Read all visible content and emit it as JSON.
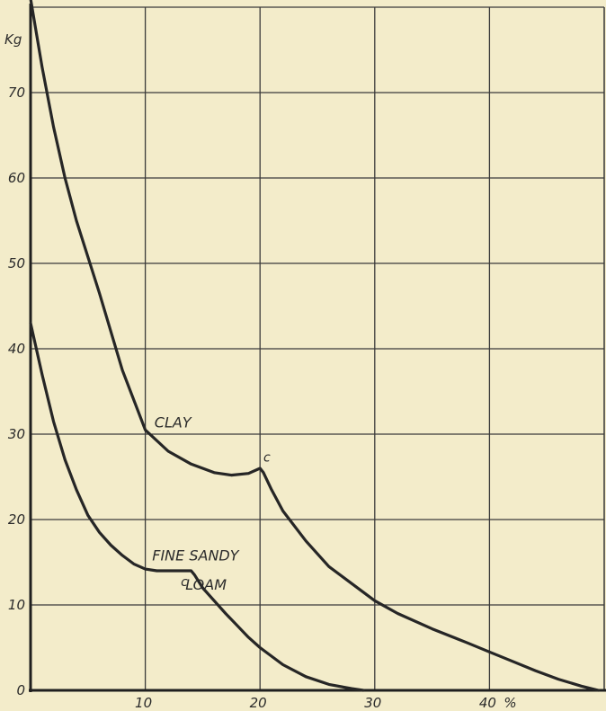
{
  "chart_data": {
    "type": "line",
    "title": "",
    "xlabel": "",
    "ylabel": "",
    "y_unit_label": "Kg",
    "x_unit_label": "%",
    "xlim": [
      0,
      50
    ],
    "ylim": [
      0,
      80
    ],
    "grid": true,
    "x_ticks": [
      {
        "value": 10,
        "label": "10"
      },
      {
        "value": 20,
        "label": "20"
      },
      {
        "value": 30,
        "label": "30"
      },
      {
        "value": 40,
        "label": "40"
      }
    ],
    "y_ticks": [
      {
        "value": 0,
        "label": "0"
      },
      {
        "value": 10,
        "label": "10"
      },
      {
        "value": 20,
        "label": "20"
      },
      {
        "value": 30,
        "label": "30"
      },
      {
        "value": 40,
        "label": "40"
      },
      {
        "value": 50,
        "label": "50"
      },
      {
        "value": 60,
        "label": "60"
      },
      {
        "value": 70,
        "label": "70"
      }
    ],
    "series": [
      {
        "name": "CLAY",
        "x": [
          0,
          1,
          2,
          3,
          4,
          6,
          8,
          10,
          12,
          14,
          16,
          17.5,
          19,
          20,
          20.3,
          21,
          22,
          24,
          26,
          28,
          30,
          32,
          35,
          38,
          40,
          42,
          44,
          46,
          48,
          49.5
        ],
        "y": [
          81,
          73,
          66,
          60,
          55,
          46.5,
          37.5,
          30.5,
          28,
          26.5,
          25.5,
          25.2,
          25.4,
          26,
          25.5,
          23.5,
          21,
          17.5,
          14.5,
          12.5,
          10.5,
          9,
          7.2,
          5.6,
          4.5,
          3.4,
          2.3,
          1.3,
          0.5,
          0
        ]
      },
      {
        "name": "FINE SANDY LOAM",
        "x": [
          0,
          1,
          2,
          3,
          4,
          5,
          6,
          7,
          8,
          9,
          10,
          11,
          12,
          13,
          14,
          14.3,
          15,
          16,
          17,
          18,
          19,
          20,
          22,
          24,
          26,
          28,
          29
        ],
        "y": [
          43,
          37,
          31.5,
          27,
          23.5,
          20.5,
          18.5,
          17,
          15.8,
          14.8,
          14.2,
          14,
          14,
          14,
          14,
          13.5,
          12,
          10.5,
          9,
          7.6,
          6.2,
          5,
          3,
          1.6,
          0.7,
          0.2,
          0
        ]
      }
    ],
    "annotations": [
      {
        "text": "CLAY",
        "x": 10.8,
        "y": 30.8,
        "type": "curve-label"
      },
      {
        "text": "FINE SANDY",
        "x": 10.6,
        "y": 15.2,
        "type": "curve-label"
      },
      {
        "text": "LOAM",
        "x": 13.5,
        "y": 11.8,
        "type": "curve-label"
      },
      {
        "text": "c",
        "x": 20.3,
        "y": 26.8,
        "type": "point-label"
      },
      {
        "text": "c",
        "x": 13.1,
        "y": 12.2,
        "type": "point-label"
      }
    ]
  }
}
